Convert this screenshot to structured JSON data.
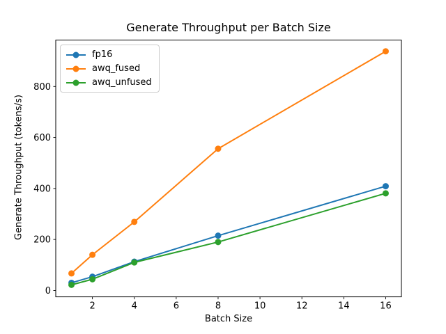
{
  "chart_data": {
    "type": "line",
    "title": "Generate Throughput per Batch Size",
    "xlabel": "Batch Size",
    "ylabel": "Generate Throughput (tokens/s)",
    "x": [
      1,
      2,
      4,
      8,
      16
    ],
    "series": [
      {
        "name": "fp16",
        "color": "#1f77b4",
        "values": [
          30,
          54,
          113,
          215,
          409
        ]
      },
      {
        "name": "awq_fused",
        "color": "#ff7f0e",
        "values": [
          67,
          140,
          269,
          556,
          938
        ]
      },
      {
        "name": "awq_unfused",
        "color": "#2ca02c",
        "values": [
          22,
          44,
          110,
          190,
          381
        ]
      }
    ],
    "xticks": [
      2,
      4,
      6,
      8,
      10,
      12,
      14,
      16
    ],
    "yticks": [
      0,
      200,
      400,
      600,
      800
    ],
    "xlim": [
      0.25,
      16.75
    ],
    "ylim": [
      -25,
      982
    ],
    "grid": false,
    "marker": "o",
    "legend_position": "upper left",
    "colors": {
      "background": "#ffffff",
      "axis": "#000000",
      "legend_border": "#cccccc"
    }
  }
}
